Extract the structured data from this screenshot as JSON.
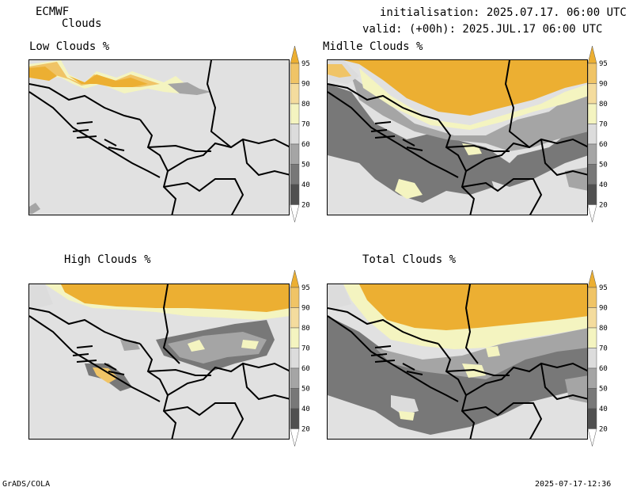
{
  "header": {
    "model": "ECMWF",
    "product": "Clouds",
    "init_line": "initialisation: 2025.07.17. 06:00 UTC",
    "valid_line": "valid: (+00h): 2025.JUL.17 06:00 UTC"
  },
  "panels": [
    {
      "title": "Low Clouds %"
    },
    {
      "title": "Midlle Clouds %"
    },
    {
      "title": "High Clouds %"
    },
    {
      "title": "Total Clouds %"
    }
  ],
  "colorbar": {
    "levels": [
      "95",
      "90",
      "80",
      "70",
      "60",
      "50",
      "40",
      "20"
    ],
    "colors": [
      "#ecaf32",
      "#f0c466",
      "#f4dc9e",
      "#f4f4c0",
      "#dcdcdc",
      "#a5a5a5",
      "#787878",
      "#505050",
      "#ffffff"
    ]
  },
  "footer": {
    "left": "GrADS/COLA",
    "right": "2025-07-17-12:36"
  }
}
